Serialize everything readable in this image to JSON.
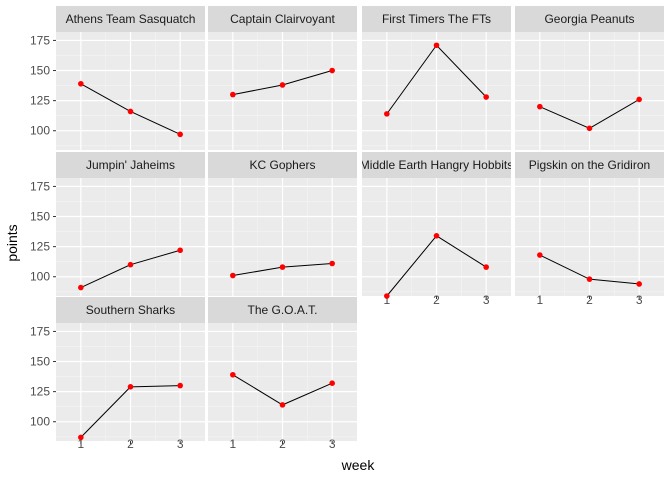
{
  "chart_data": {
    "type": "line",
    "facet": "wrap",
    "ncol": 4,
    "x": [
      1,
      2,
      3
    ],
    "x_ticks": [
      1,
      2,
      3
    ],
    "xlim": [
      0.5,
      3.5
    ],
    "ylim": [
      84,
      182
    ],
    "y_ticks": [
      100,
      125,
      150,
      175
    ],
    "y_minor_ticks": [
      87.5,
      112.5,
      137.5,
      162.5
    ],
    "xlabel": "week",
    "ylabel": "points",
    "grid": true,
    "point_color": "#ff0000",
    "line_color": "#000000",
    "panel_background": "#ebebeb",
    "strip_background": "#d9d9d9",
    "series": [
      {
        "name": "Athens Team Sasquatch",
        "values": [
          139,
          116,
          97
        ]
      },
      {
        "name": "Captain Clairvoyant",
        "values": [
          130,
          138,
          150
        ]
      },
      {
        "name": "First Timers The FTs",
        "values": [
          114,
          171,
          128
        ]
      },
      {
        "name": "Georgia Peanuts",
        "values": [
          120,
          102,
          126
        ]
      },
      {
        "name": "Jumpin' Jaheims",
        "values": [
          91,
          110,
          122
        ]
      },
      {
        "name": "KC Gophers",
        "values": [
          101,
          108,
          111
        ]
      },
      {
        "name": "Middle Earth Hangry Hobbits",
        "values": [
          84,
          134,
          108
        ]
      },
      {
        "name": "Pigskin on  the Gridiron",
        "values": [
          118,
          98,
          94
        ]
      },
      {
        "name": "Southern Sharks",
        "values": [
          87,
          129,
          130
        ]
      },
      {
        "name": "The G.O.A.T.",
        "values": [
          139,
          114,
          132
        ]
      }
    ]
  }
}
